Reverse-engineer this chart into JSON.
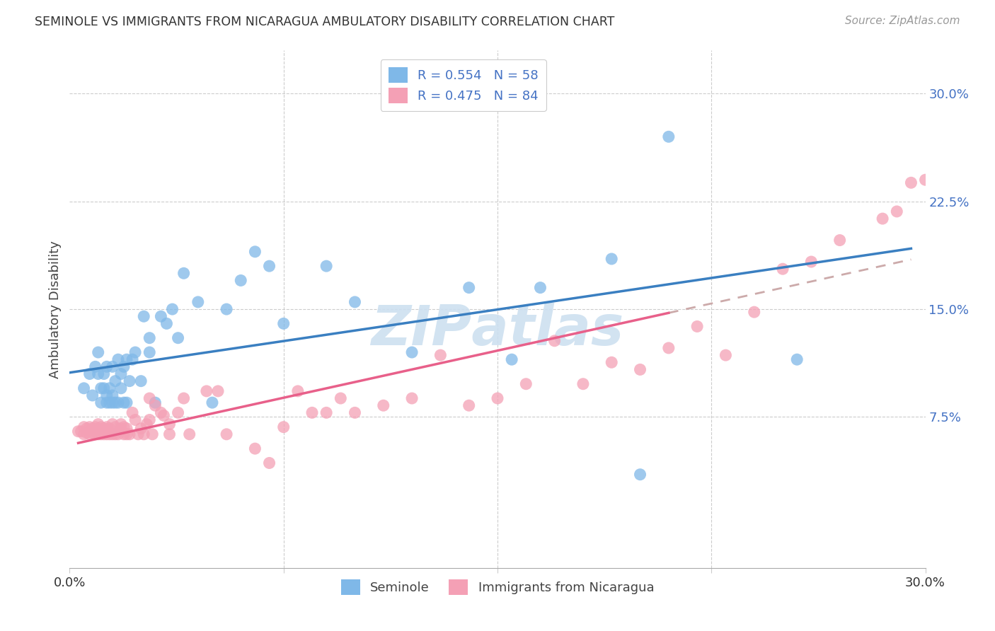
{
  "title": "SEMINOLE VS IMMIGRANTS FROM NICARAGUA AMBULATORY DISABILITY CORRELATION CHART",
  "source": "Source: ZipAtlas.com",
  "ylabel": "Ambulatory Disability",
  "yticks": [
    "7.5%",
    "15.0%",
    "22.5%",
    "30.0%"
  ],
  "ytick_values": [
    0.075,
    0.15,
    0.225,
    0.3
  ],
  "xlim": [
    0.0,
    0.3
  ],
  "ylim": [
    -0.03,
    0.33
  ],
  "legend_blue_r": "R = 0.554",
  "legend_blue_n": "N = 58",
  "legend_pink_r": "R = 0.475",
  "legend_pink_n": "N = 84",
  "legend_label_blue": "Seminole",
  "legend_label_pink": "Immigrants from Nicaragua",
  "color_blue": "#7fb8e8",
  "color_pink": "#f4a0b5",
  "line_blue": "#3a7fc1",
  "line_pink": "#e8608a",
  "watermark_color": "#cde0f0",
  "seminole_x": [
    0.005,
    0.007,
    0.008,
    0.009,
    0.01,
    0.01,
    0.011,
    0.011,
    0.012,
    0.012,
    0.013,
    0.013,
    0.013,
    0.014,
    0.014,
    0.015,
    0.015,
    0.015,
    0.016,
    0.016,
    0.017,
    0.017,
    0.018,
    0.018,
    0.019,
    0.019,
    0.02,
    0.02,
    0.021,
    0.022,
    0.023,
    0.025,
    0.026,
    0.028,
    0.028,
    0.03,
    0.032,
    0.034,
    0.036,
    0.038,
    0.04,
    0.045,
    0.05,
    0.055,
    0.06,
    0.065,
    0.07,
    0.075,
    0.09,
    0.1,
    0.12,
    0.14,
    0.155,
    0.165,
    0.19,
    0.2,
    0.21,
    0.255
  ],
  "seminole_y": [
    0.095,
    0.105,
    0.09,
    0.11,
    0.12,
    0.105,
    0.085,
    0.095,
    0.105,
    0.095,
    0.09,
    0.085,
    0.11,
    0.085,
    0.095,
    0.09,
    0.085,
    0.11,
    0.085,
    0.1,
    0.085,
    0.115,
    0.095,
    0.105,
    0.085,
    0.11,
    0.085,
    0.115,
    0.1,
    0.115,
    0.12,
    0.1,
    0.145,
    0.12,
    0.13,
    0.085,
    0.145,
    0.14,
    0.15,
    0.13,
    0.175,
    0.155,
    0.085,
    0.15,
    0.17,
    0.19,
    0.18,
    0.14,
    0.18,
    0.155,
    0.12,
    0.165,
    0.115,
    0.165,
    0.185,
    0.035,
    0.27,
    0.115
  ],
  "nicaragua_x": [
    0.003,
    0.004,
    0.005,
    0.005,
    0.006,
    0.006,
    0.007,
    0.007,
    0.008,
    0.008,
    0.009,
    0.009,
    0.01,
    0.01,
    0.01,
    0.011,
    0.011,
    0.012,
    0.012,
    0.013,
    0.013,
    0.014,
    0.014,
    0.015,
    0.015,
    0.016,
    0.016,
    0.017,
    0.018,
    0.018,
    0.019,
    0.019,
    0.02,
    0.02,
    0.021,
    0.022,
    0.023,
    0.024,
    0.025,
    0.026,
    0.027,
    0.028,
    0.028,
    0.029,
    0.03,
    0.032,
    0.033,
    0.035,
    0.035,
    0.038,
    0.04,
    0.042,
    0.048,
    0.052,
    0.055,
    0.065,
    0.07,
    0.075,
    0.08,
    0.085,
    0.09,
    0.095,
    0.1,
    0.11,
    0.12,
    0.13,
    0.14,
    0.15,
    0.16,
    0.17,
    0.18,
    0.19,
    0.2,
    0.21,
    0.22,
    0.23,
    0.24,
    0.25,
    0.26,
    0.27,
    0.285,
    0.29,
    0.295,
    0.3
  ],
  "nicaragua_y": [
    0.065,
    0.065,
    0.063,
    0.068,
    0.064,
    0.067,
    0.063,
    0.068,
    0.064,
    0.067,
    0.063,
    0.068,
    0.063,
    0.067,
    0.07,
    0.063,
    0.068,
    0.063,
    0.067,
    0.063,
    0.068,
    0.063,
    0.067,
    0.063,
    0.07,
    0.063,
    0.068,
    0.063,
    0.067,
    0.07,
    0.063,
    0.068,
    0.063,
    0.067,
    0.063,
    0.078,
    0.073,
    0.063,
    0.067,
    0.063,
    0.07,
    0.073,
    0.088,
    0.063,
    0.083,
    0.078,
    0.076,
    0.07,
    0.063,
    0.078,
    0.088,
    0.063,
    0.093,
    0.093,
    0.063,
    0.053,
    0.043,
    0.068,
    0.093,
    0.078,
    0.078,
    0.088,
    0.078,
    0.083,
    0.088,
    0.118,
    0.083,
    0.088,
    0.098,
    0.128,
    0.098,
    0.113,
    0.108,
    0.123,
    0.138,
    0.118,
    0.148,
    0.178,
    0.183,
    0.198,
    0.213,
    0.218,
    0.238,
    0.24
  ]
}
